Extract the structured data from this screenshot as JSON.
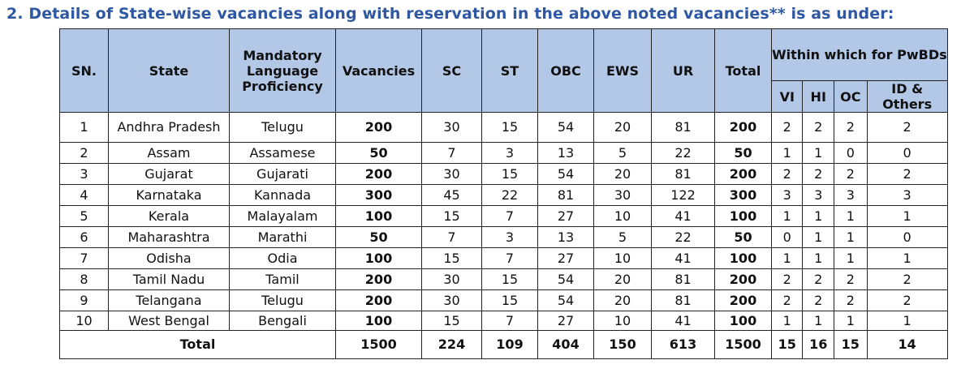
{
  "heading": "2. Details of State-wise vacancies along with reservation in the above noted vacancies** is as under:",
  "columns": {
    "sn": "SN.",
    "state": "State",
    "language": "Mandatory Language Proficiency",
    "vacancies": "Vacancies",
    "sc": "SC",
    "st": "ST",
    "obc": "OBC",
    "ews": "EWS",
    "ur": "UR",
    "total": "Total",
    "pwbd_group": "Within which for PwBDs",
    "vi": "VI",
    "hi": "HI",
    "oc": "OC",
    "id_others": "ID & Others"
  },
  "rows": [
    [
      "1",
      "Andhra Pradesh",
      "Telugu",
      "200",
      "30",
      "15",
      "54",
      "20",
      "81",
      "200",
      "2",
      "2",
      "2",
      "2"
    ],
    [
      "2",
      "Assam",
      "Assamese",
      "50",
      "7",
      "3",
      "13",
      "5",
      "22",
      "50",
      "1",
      "1",
      "0",
      "0"
    ],
    [
      "3",
      "Gujarat",
      "Gujarati",
      "200",
      "30",
      "15",
      "54",
      "20",
      "81",
      "200",
      "2",
      "2",
      "2",
      "2"
    ],
    [
      "4",
      "Karnataka",
      "Kannada",
      "300",
      "45",
      "22",
      "81",
      "30",
      "122",
      "300",
      "3",
      "3",
      "3",
      "3"
    ],
    [
      "5",
      "Kerala",
      "Malayalam",
      "100",
      "15",
      "7",
      "27",
      "10",
      "41",
      "100",
      "1",
      "1",
      "1",
      "1"
    ],
    [
      "6",
      "Maharashtra",
      "Marathi",
      "50",
      "7",
      "3",
      "13",
      "5",
      "22",
      "50",
      "0",
      "1",
      "1",
      "0"
    ],
    [
      "7",
      "Odisha",
      "Odia",
      "100",
      "15",
      "7",
      "27",
      "10",
      "41",
      "100",
      "1",
      "1",
      "1",
      "1"
    ],
    [
      "8",
      "Tamil Nadu",
      "Tamil",
      "200",
      "30",
      "15",
      "54",
      "20",
      "81",
      "200",
      "2",
      "2",
      "2",
      "2"
    ],
    [
      "9",
      "Telangana",
      "Telugu",
      "200",
      "30",
      "15",
      "54",
      "20",
      "81",
      "200",
      "2",
      "2",
      "2",
      "2"
    ],
    [
      "10",
      "West Bengal",
      "Bengali",
      "100",
      "15",
      "7",
      "27",
      "10",
      "41",
      "100",
      "1",
      "1",
      "1",
      "1"
    ]
  ],
  "total_row": {
    "label": "Total",
    "values": [
      "1500",
      "224",
      "109",
      "404",
      "150",
      "613",
      "1500",
      "15",
      "16",
      "15",
      "14"
    ]
  }
}
